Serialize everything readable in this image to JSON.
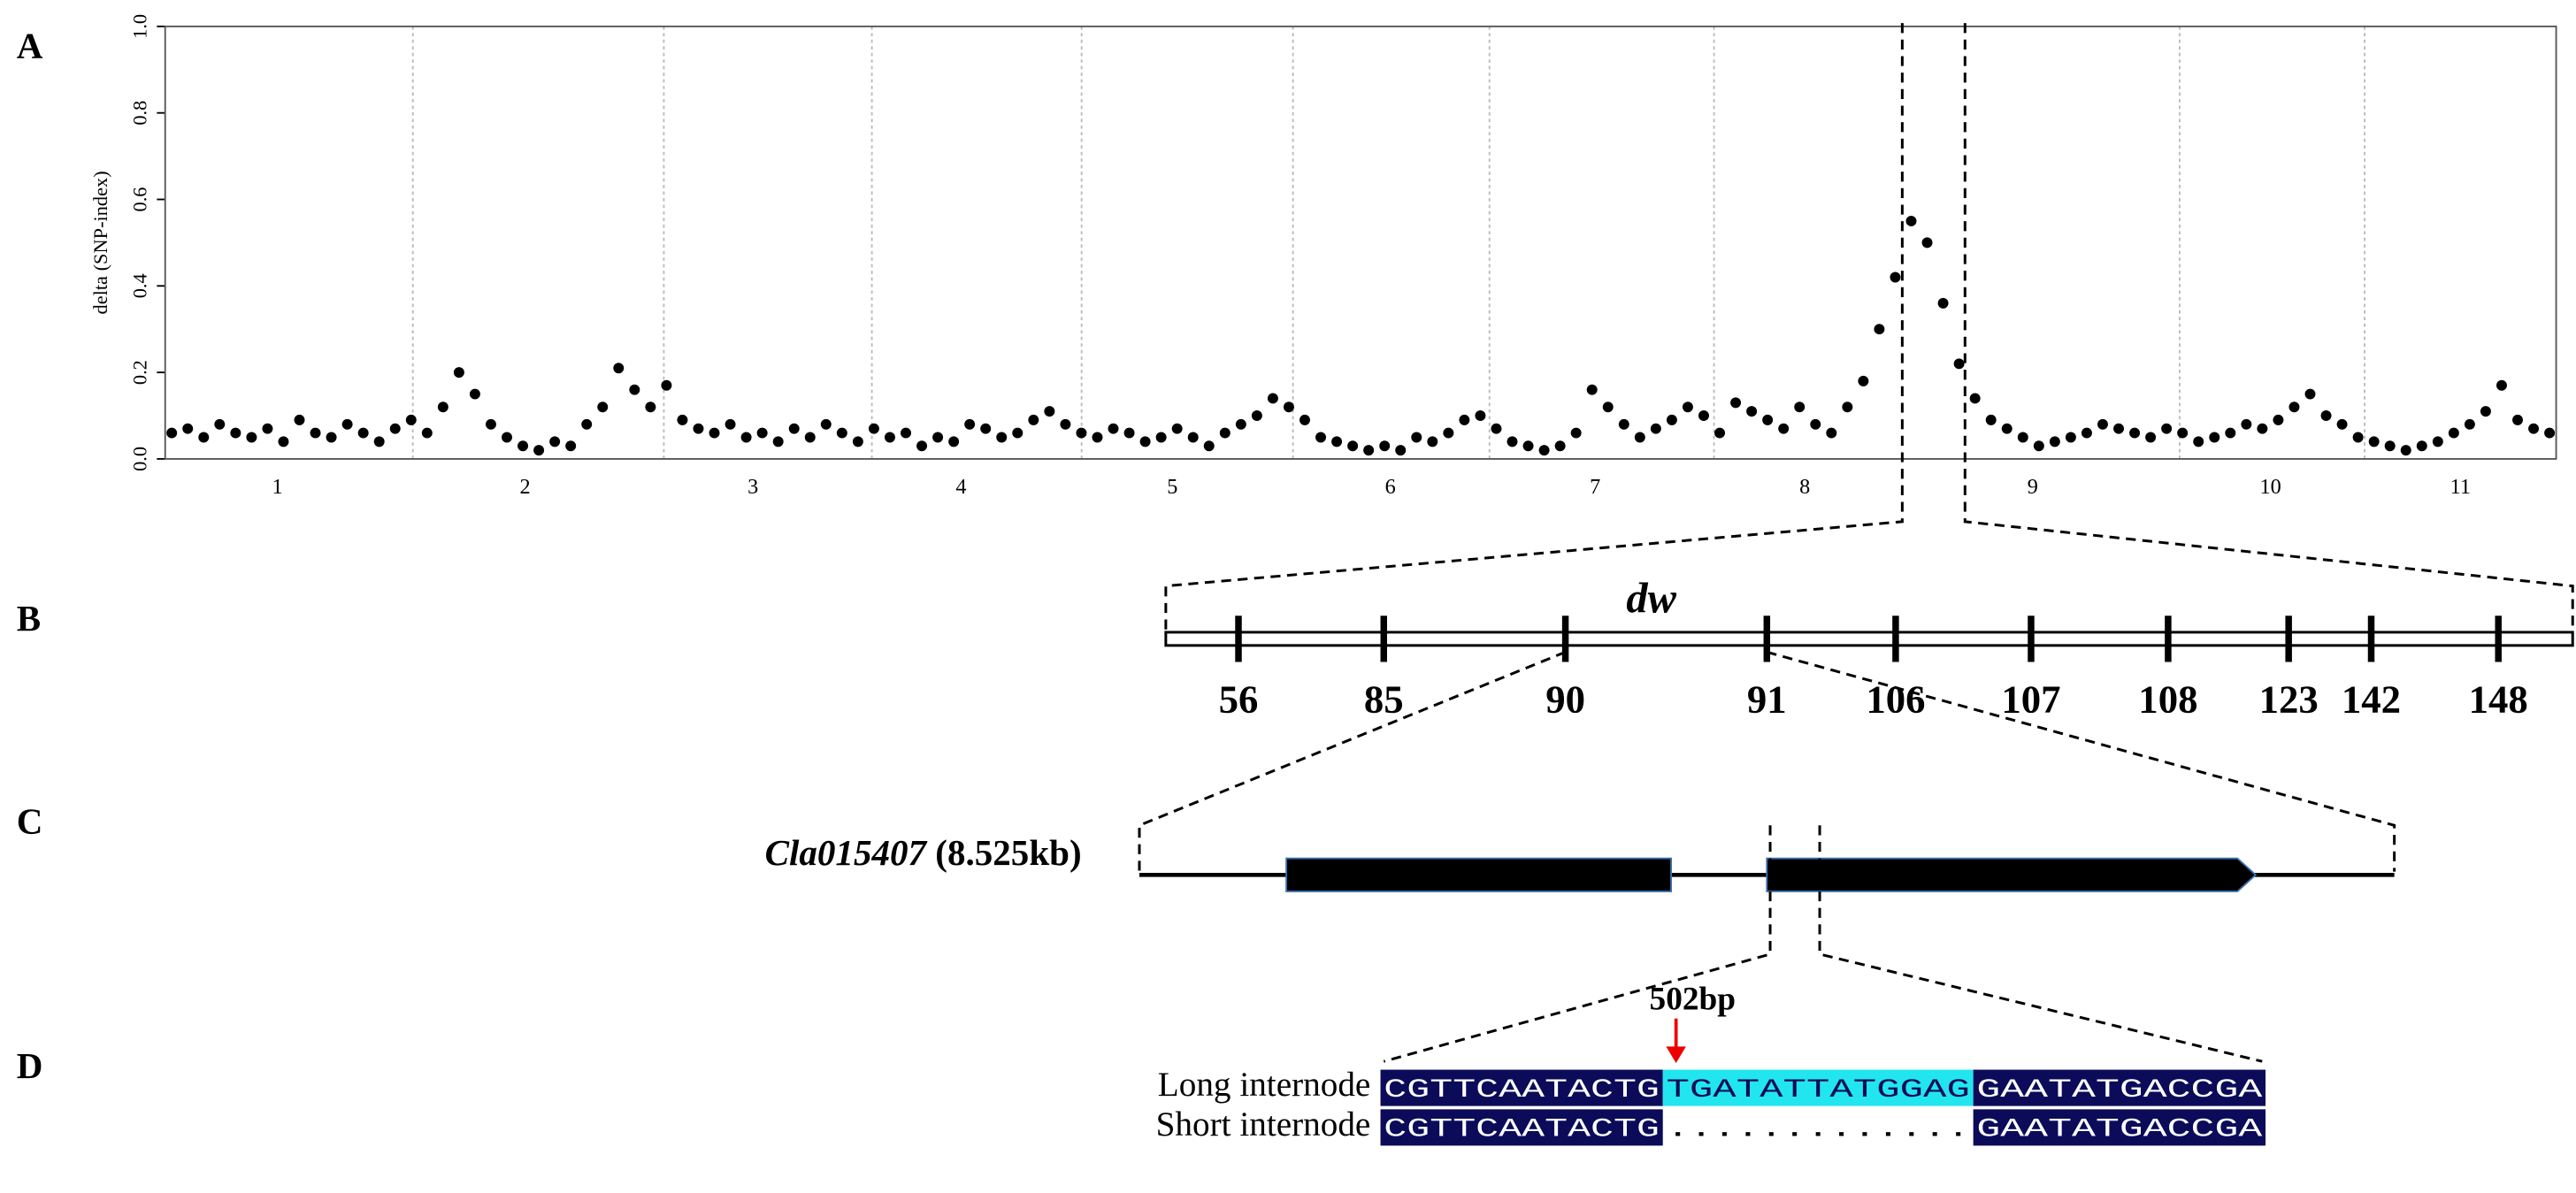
{
  "chart_data": {
    "type": "scatter",
    "y_label": "delta (SNP-index)",
    "categories": [
      "1",
      "2",
      "3",
      "4",
      "5",
      "6",
      "7",
      "8",
      "9",
      "10",
      "11"
    ],
    "values": [
      0.06,
      0.07,
      0.05,
      0.08,
      0.06,
      0.05,
      0.07,
      0.04,
      0.09,
      0.06,
      0.05,
      0.08,
      0.06,
      0.04,
      0.07,
      0.09,
      0.06,
      0.12,
      0.2,
      0.15,
      0.08,
      0.05,
      0.03,
      0.02,
      0.04,
      0.03,
      0.08,
      0.12,
      0.21,
      0.16,
      0.12,
      0.17,
      0.09,
      0.07,
      0.06,
      0.08,
      0.05,
      0.06,
      0.04,
      0.07,
      0.05,
      0.08,
      0.06,
      0.04,
      0.07,
      0.05,
      0.06,
      0.03,
      0.05,
      0.04,
      0.08,
      0.07,
      0.05,
      0.06,
      0.09,
      0.11,
      0.08,
      0.06,
      0.05,
      0.07,
      0.06,
      0.04,
      0.05,
      0.07,
      0.05,
      0.03,
      0.06,
      0.08,
      0.1,
      0.14,
      0.12,
      0.09,
      0.05,
      0.04,
      0.03,
      0.02,
      0.03,
      0.02,
      0.05,
      0.04,
      0.06,
      0.09,
      0.1,
      0.07,
      0.04,
      0.03,
      0.02,
      0.03,
      0.06,
      0.16,
      0.12,
      0.08,
      0.05,
      0.07,
      0.09,
      0.12,
      0.1,
      0.06,
      0.13,
      0.11,
      0.09,
      0.07,
      0.12,
      0.08,
      0.06,
      0.12,
      0.18,
      0.3,
      0.42,
      0.55,
      0.5,
      0.36,
      0.22,
      0.14,
      0.09,
      0.07,
      0.05,
      0.03,
      0.04,
      0.05,
      0.06,
      0.08,
      0.07,
      0.06,
      0.05,
      0.07,
      0.06,
      0.04,
      0.05,
      0.06,
      0.08,
      0.07,
      0.09,
      0.12,
      0.15,
      0.1,
      0.08,
      0.05,
      0.04,
      0.03,
      0.02,
      0.03,
      0.04,
      0.06,
      0.08,
      0.11,
      0.17,
      0.09,
      0.07,
      0.06
    ],
    "color": "#000000",
    "ylim": [
      0,
      1
    ],
    "yticks": [
      {
        "value": 0,
        "label": "0.0"
      },
      {
        "value": 0.2,
        "label": "0.2"
      },
      {
        "value": 0.4,
        "label": "0.4"
      },
      {
        "value": 0.6,
        "label": "0.6"
      },
      {
        "value": 0.8,
        "label": "0.8"
      },
      {
        "value": 1,
        "label": "1.0"
      }
    ]
  },
  "panels": {
    "a": "A",
    "b": "B",
    "c": "C",
    "d": "D"
  },
  "map": {
    "gene_symbol": "dw",
    "markers": [
      "56",
      "85",
      "90",
      "91",
      "106",
      "107",
      "108",
      "123",
      "142",
      "148"
    ]
  },
  "gene": {
    "name": "Cla015407",
    "size": "(8.525kb)"
  },
  "alignment": {
    "position": "502bp",
    "rows": [
      {
        "label": "Long internode",
        "left": "CGTTCAATACTG",
        "middle": "TGATATTATGGAG",
        "right": "GAATATGACCGA"
      },
      {
        "label": "Short internode",
        "left": "CGTTCAATACTG",
        "middle": ".............",
        "right": "GAATATGACCGA"
      }
    ]
  }
}
